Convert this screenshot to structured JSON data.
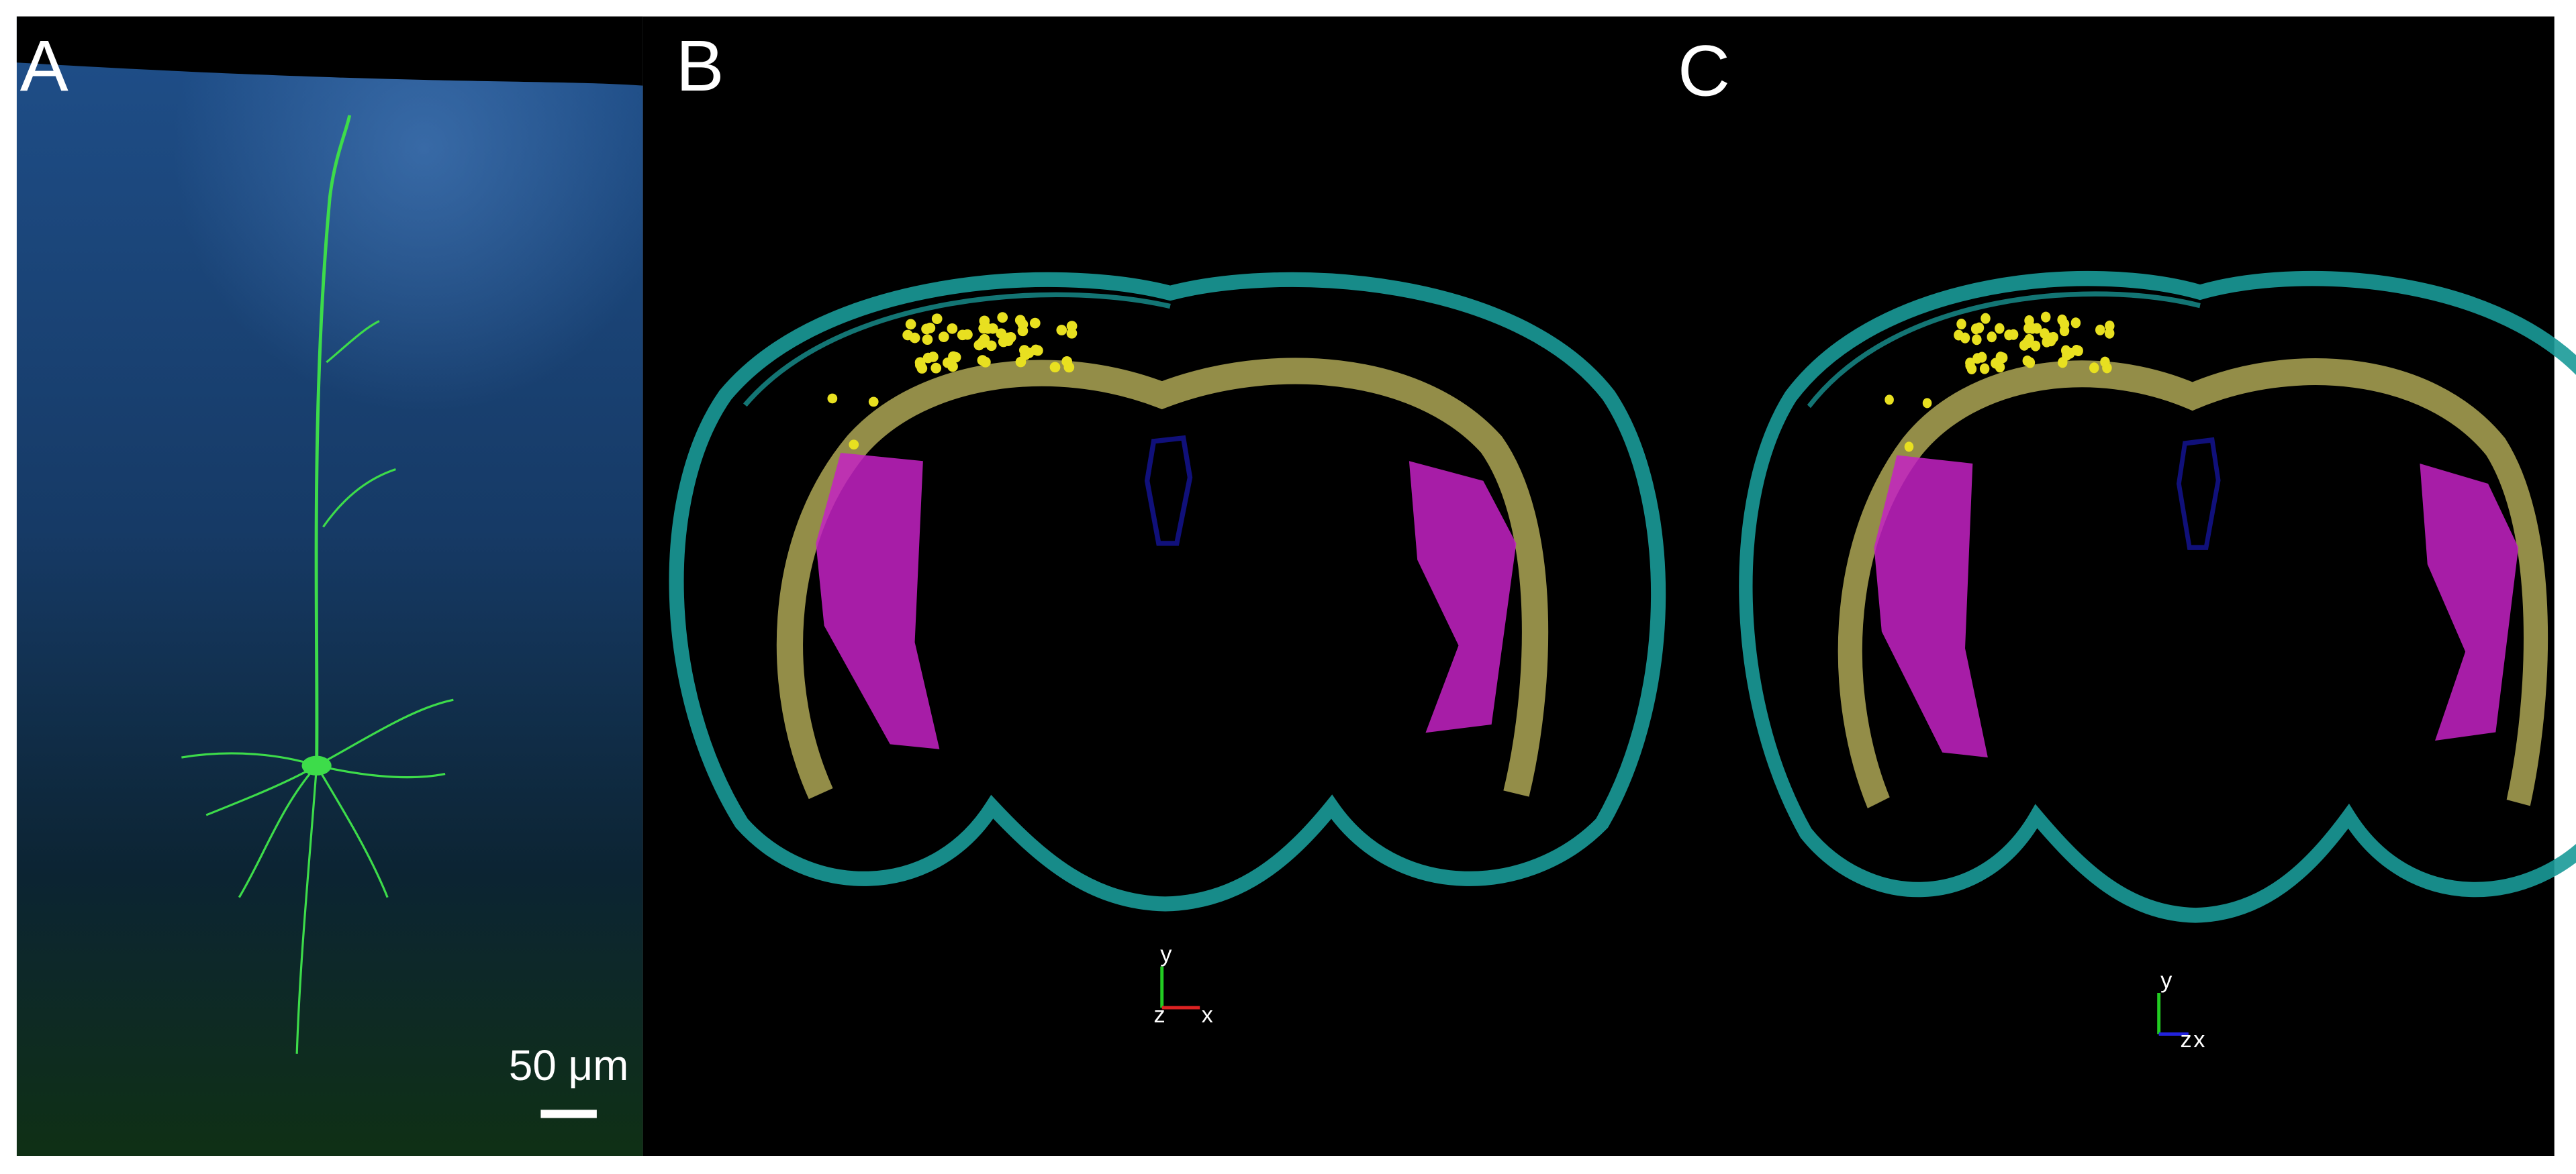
{
  "panels": [
    {
      "label": "A",
      "scale_bar": "50 μm"
    },
    {
      "label": "B",
      "axes": {
        "y": "y",
        "z": "z",
        "x": "x"
      }
    },
    {
      "label": "C",
      "axes": {
        "y": "y",
        "z": "z",
        "x": "x"
      }
    }
  ]
}
